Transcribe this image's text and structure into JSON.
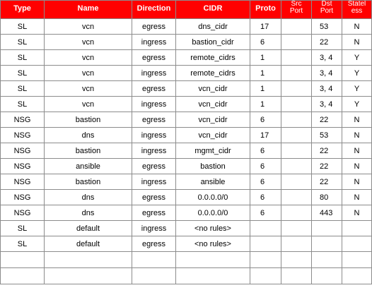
{
  "table": {
    "headers": {
      "type": "Type",
      "name": "Name",
      "direction": "Direction",
      "cidr": "CIDR",
      "proto": "Proto",
      "src_port_line1": "Src",
      "src_port_line2": "Port",
      "dst_port_line1": "Dst",
      "dst_port_line2": "Port",
      "stateless_line1": "Statel",
      "stateless_line2": "ess"
    },
    "header_bg_color": "#ff0000",
    "rows": [
      {
        "type": "SL",
        "name": "vcn",
        "direction": "egress",
        "cidr": "dns_cidr",
        "proto": "17",
        "src_port": "",
        "dst_port": "53",
        "stateless": "N"
      },
      {
        "type": "SL",
        "name": "vcn",
        "direction": "ingress",
        "cidr": "bastion_cidr",
        "proto": "6",
        "src_port": "",
        "dst_port": "22",
        "stateless": "N"
      },
      {
        "type": "SL",
        "name": "vcn",
        "direction": "egress",
        "cidr": "remote_cidrs",
        "proto": "1",
        "src_port": "",
        "dst_port": "3, 4",
        "stateless": "Y"
      },
      {
        "type": "SL",
        "name": "vcn",
        "direction": "ingress",
        "cidr": "remote_cidrs",
        "proto": "1",
        "src_port": "",
        "dst_port": "3, 4",
        "stateless": "Y"
      },
      {
        "type": "SL",
        "name": "vcn",
        "direction": "egress",
        "cidr": "vcn_cidr",
        "proto": "1",
        "src_port": "",
        "dst_port": "3, 4",
        "stateless": "Y"
      },
      {
        "type": "SL",
        "name": "vcn",
        "direction": "ingress",
        "cidr": "vcn_cidr",
        "proto": "1",
        "src_port": "",
        "dst_port": "3, 4",
        "stateless": "Y"
      },
      {
        "type": "NSG",
        "name": "bastion",
        "direction": "egress",
        "cidr": "vcn_cidr",
        "proto": "6",
        "src_port": "",
        "dst_port": "22",
        "stateless": "N"
      },
      {
        "type": "NSG",
        "name": "dns",
        "direction": "ingress",
        "cidr": "vcn_cidr",
        "proto": "17",
        "src_port": "",
        "dst_port": "53",
        "stateless": "N"
      },
      {
        "type": "NSG",
        "name": "bastion",
        "direction": "ingress",
        "cidr": "mgmt_cidr",
        "proto": "6",
        "src_port": "",
        "dst_port": "22",
        "stateless": "N"
      },
      {
        "type": "NSG",
        "name": "ansible",
        "direction": "egress",
        "cidr": "bastion",
        "proto": "6",
        "src_port": "",
        "dst_port": "22",
        "stateless": "N"
      },
      {
        "type": "NSG",
        "name": "bastion",
        "direction": "ingress",
        "cidr": "ansible",
        "proto": "6",
        "src_port": "",
        "dst_port": "22",
        "stateless": "N"
      },
      {
        "type": "NSG",
        "name": "dns",
        "direction": "egress",
        "cidr": "0.0.0.0/0",
        "proto": "6",
        "src_port": "",
        "dst_port": "80",
        "stateless": "N"
      },
      {
        "type": "NSG",
        "name": "dns",
        "direction": "egress",
        "cidr": "0.0.0.0/0",
        "proto": "6",
        "src_port": "",
        "dst_port": "443",
        "stateless": "N"
      },
      {
        "type": "SL",
        "name": "default",
        "direction": "ingress",
        "cidr": "<no rules>",
        "proto": "",
        "src_port": "",
        "dst_port": "",
        "stateless": ""
      },
      {
        "type": "SL",
        "name": "default",
        "direction": "egress",
        "cidr": "<no rules>",
        "proto": "",
        "src_port": "",
        "dst_port": "",
        "stateless": ""
      },
      {
        "type": "",
        "name": "",
        "direction": "",
        "cidr": "",
        "proto": "",
        "src_port": "",
        "dst_port": "",
        "stateless": ""
      },
      {
        "type": "",
        "name": "",
        "direction": "",
        "cidr": "",
        "proto": "",
        "src_port": "",
        "dst_port": "",
        "stateless": ""
      }
    ]
  }
}
